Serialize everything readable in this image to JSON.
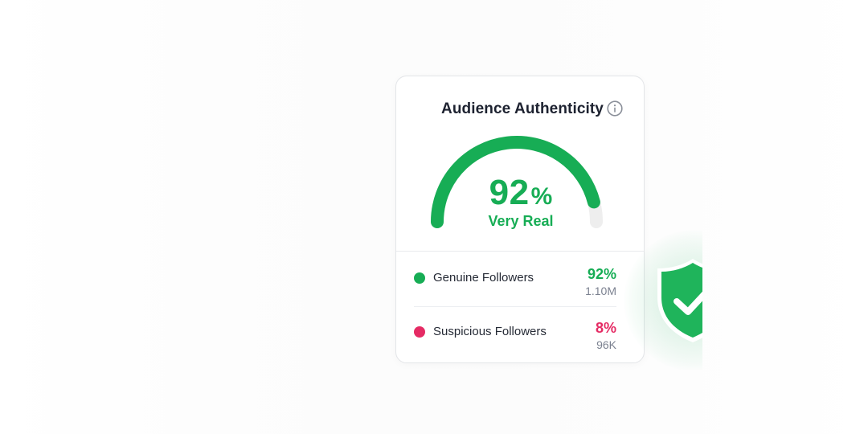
{
  "card": {
    "title": "Audience Authenticity",
    "info_icon": "info-icon"
  },
  "gauge": {
    "value": 92,
    "value_text": "92",
    "percent_sign": "%",
    "label": "Very Real",
    "max": 100,
    "color_fill": "#17ad55",
    "color_track": "#eeeeee"
  },
  "breakdown": [
    {
      "label": "Genuine Followers",
      "percent": "92%",
      "count": "1.10M",
      "color": "#17ad55"
    },
    {
      "label": "Suspicious Followers",
      "percent": "8%",
      "count": "96K",
      "color": "#e52b64"
    }
  ],
  "badge": {
    "icon": "shield-check-icon",
    "color": "#1fb45b"
  }
}
